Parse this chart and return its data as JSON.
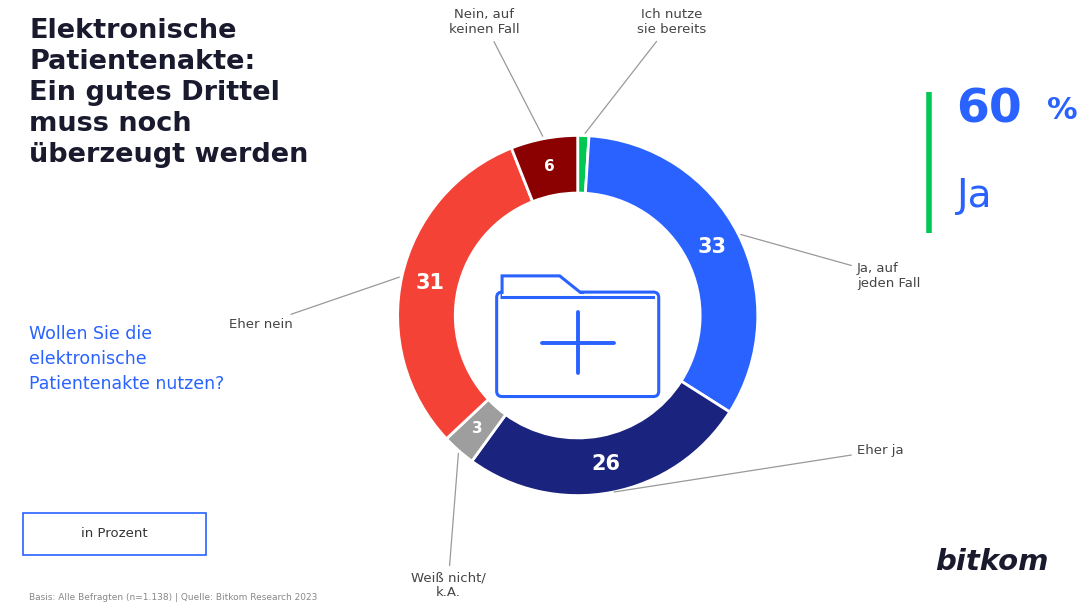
{
  "title": "Elektronische\nPatientenakte:\nEin gutes Drittel\nmuss noch\nüberzeugt werden",
  "subtitle": "Wollen Sie die\nelektronische\nPatientenakte nutzen?",
  "footnote": "Basis: Alle Befragten (n=1.138) | Quelle: Bitkom Research 2023",
  "in_prozent": "in Prozent",
  "highlight_pct_num": "60",
  "highlight_pct_sym": "%",
  "highlight_label": "Ja",
  "segments_ordered": [
    {
      "label": "Ich nutze\nsie bereits",
      "value": 1,
      "color": "#00C853",
      "ann_side": "right"
    },
    {
      "label": "Ja, auf\njeden Fall",
      "value": 33,
      "color": "#2962FF",
      "ann_side": "right"
    },
    {
      "label": "Eher ja",
      "value": 26,
      "color": "#1A237E",
      "ann_side": "right"
    },
    {
      "label": "Weiß nicht/\nk.A.",
      "value": 3,
      "color": "#9E9E9E",
      "ann_side": "left"
    },
    {
      "label": "Eher nein",
      "value": 31,
      "color": "#F44336",
      "ann_side": "left"
    },
    {
      "label": "Nein, auf\nkeinen Fall",
      "value": 6,
      "color": "#8B0000",
      "ann_side": "left"
    }
  ],
  "bg_color": "#FFFFFF",
  "title_color": "#1A1A2E",
  "subtitle_color": "#2962FF",
  "green_bar_color": "#00C853",
  "highlight_color": "#2962FF",
  "annotation_color": "#444444",
  "folder_color": "#2962FF",
  "bitkom_color": "#1A1A2E"
}
